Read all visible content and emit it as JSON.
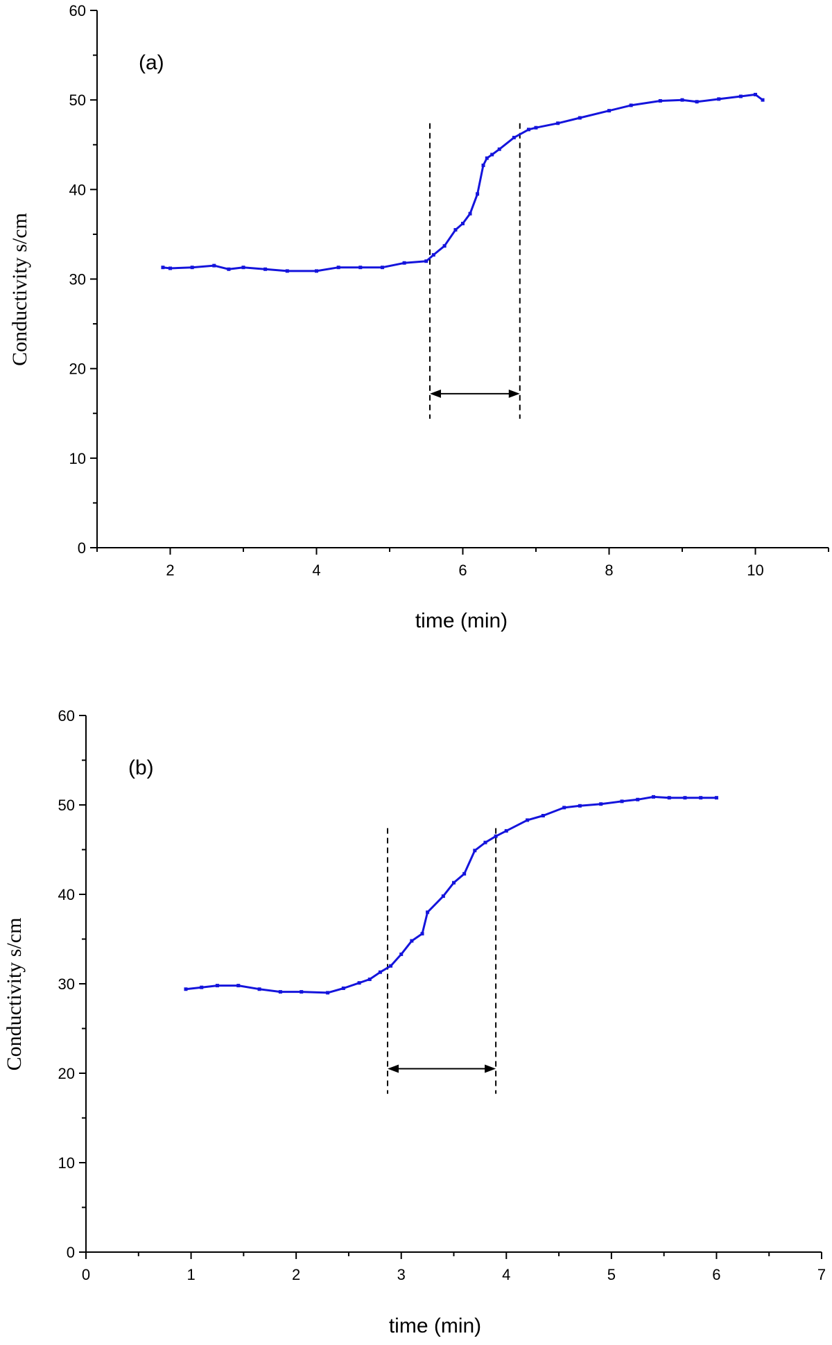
{
  "chart_data": [
    {
      "type": "line",
      "panel_label": "(a)",
      "xlabel": "time (min)",
      "ylabel": "Conductivity s/cm",
      "xlim": [
        1,
        11
      ],
      "ylim": [
        0,
        60
      ],
      "xticks": [
        2,
        4,
        6,
        8,
        10
      ],
      "yticks": [
        0,
        10,
        20,
        30,
        40,
        50,
        60
      ],
      "grid": false,
      "line_color": "#1414dc",
      "series": [
        {
          "x": [
            1.9,
            2.0,
            2.3,
            2.6,
            2.8,
            3.0,
            3.3,
            3.6,
            4.0,
            4.3,
            4.6,
            4.9,
            5.2,
            5.5,
            5.6,
            5.75,
            5.9,
            6.0,
            6.1,
            6.2,
            6.28,
            6.33,
            6.4,
            6.5,
            6.7,
            6.9,
            7.0,
            7.3,
            7.6,
            8.0,
            8.3,
            8.7,
            9.0,
            9.2,
            9.5,
            9.8,
            10.0,
            10.1
          ],
          "y": [
            31.3,
            31.2,
            31.3,
            31.5,
            31.1,
            31.3,
            31.1,
            30.9,
            30.9,
            31.3,
            31.3,
            31.3,
            31.8,
            32.0,
            32.7,
            33.7,
            35.5,
            36.2,
            37.3,
            39.5,
            42.7,
            43.5,
            43.9,
            44.5,
            45.8,
            46.7,
            46.9,
            47.4,
            48.0,
            48.8,
            49.4,
            49.9,
            50.0,
            49.8,
            50.1,
            50.4,
            50.6,
            50.0
          ]
        }
      ],
      "dashed_lines_x": [
        5.55,
        6.78
      ],
      "arrow": {
        "x": [
          5.55,
          6.78
        ],
        "y": 17.2
      }
    },
    {
      "type": "line",
      "panel_label": "(b)",
      "xlabel": "time (min)",
      "ylabel": "Conductivity s/cm",
      "xlim": [
        0,
        7
      ],
      "ylim": [
        0,
        60
      ],
      "xticks": [
        0,
        1,
        2,
        3,
        4,
        5,
        6,
        7
      ],
      "yticks": [
        0,
        10,
        20,
        30,
        40,
        50,
        60
      ],
      "grid": false,
      "line_color": "#1414dc",
      "series": [
        {
          "x": [
            0.95,
            1.1,
            1.25,
            1.45,
            1.65,
            1.85,
            2.05,
            2.3,
            2.45,
            2.6,
            2.7,
            2.8,
            2.9,
            3.0,
            3.1,
            3.2,
            3.25,
            3.4,
            3.5,
            3.6,
            3.7,
            3.8,
            3.9,
            4.0,
            4.2,
            4.35,
            4.55,
            4.7,
            4.9,
            5.1,
            5.25,
            5.4,
            5.55,
            5.7,
            5.85,
            6.0
          ],
          "y": [
            29.4,
            29.6,
            29.8,
            29.8,
            29.4,
            29.1,
            29.1,
            29.0,
            29.5,
            30.1,
            30.5,
            31.3,
            32.0,
            33.3,
            34.8,
            35.6,
            38.0,
            39.8,
            41.3,
            42.3,
            44.9,
            45.8,
            46.5,
            47.1,
            48.3,
            48.8,
            49.7,
            49.9,
            50.1,
            50.4,
            50.6,
            50.9,
            50.8,
            50.8,
            50.8,
            50.8
          ]
        }
      ],
      "dashed_lines_x": [
        2.87,
        3.9
      ],
      "arrow": {
        "x": [
          2.87,
          3.9
        ],
        "y": 20.5
      }
    }
  ]
}
